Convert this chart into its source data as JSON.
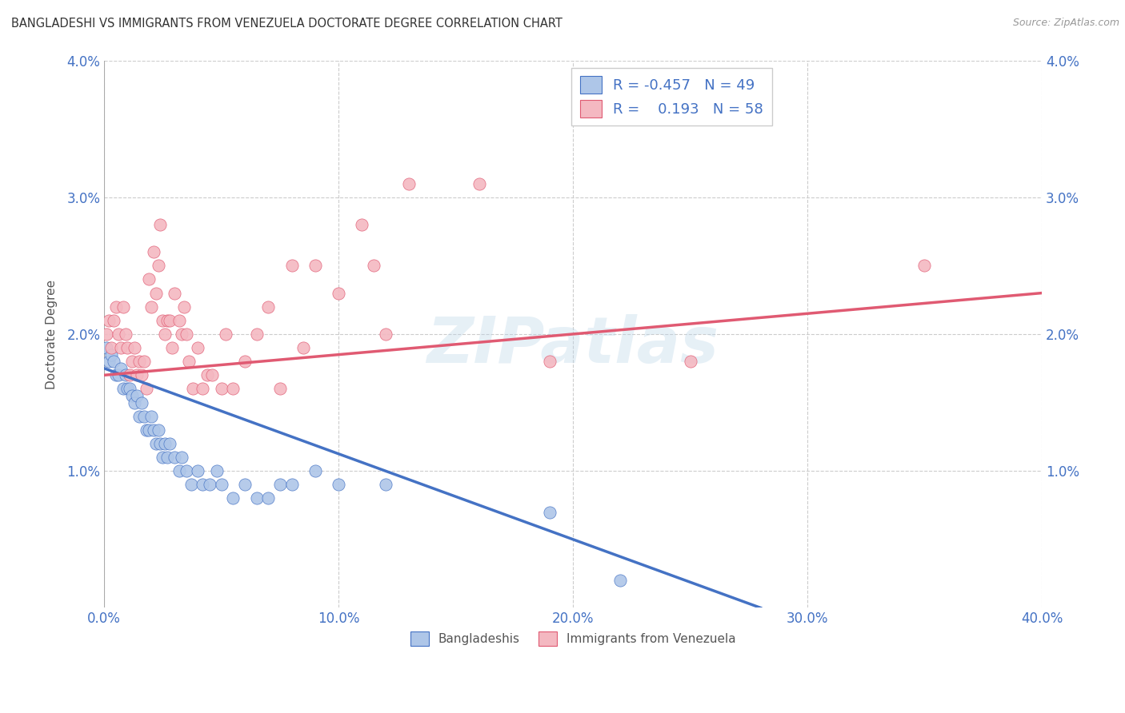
{
  "title": "BANGLADESHI VS IMMIGRANTS FROM VENEZUELA DOCTORATE DEGREE CORRELATION CHART",
  "source": "Source: ZipAtlas.com",
  "ylabel": "Doctorate Degree",
  "xlim": [
    0.0,
    0.4
  ],
  "ylim": [
    0.0,
    0.04
  ],
  "xtick_vals": [
    0.0,
    0.1,
    0.2,
    0.3,
    0.4
  ],
  "ytick_labels": [
    "1.0%",
    "2.0%",
    "3.0%",
    "4.0%"
  ],
  "ytick_vals": [
    0.01,
    0.02,
    0.03,
    0.04
  ],
  "watermark": "ZIPatlas",
  "legend_entries": [
    {
      "color": "#aec6e8",
      "r": "-0.457",
      "n": "49"
    },
    {
      "color": "#f4b8c1",
      "r": " 0.193",
      "n": "58"
    }
  ],
  "bangladeshi_color": "#aec6e8",
  "venezuela_color": "#f4b8c1",
  "blue_line_color": "#4472c4",
  "pink_line_color": "#e05a72",
  "background_color": "#ffffff",
  "grid_color": "#cccccc",
  "legend_label_blue": "Bangladeshis",
  "legend_label_pink": "Immigrants from Venezuela",
  "blue_line": {
    "x0": 0.0,
    "y0": 0.0175,
    "x1": 0.28,
    "y1": 0.0
  },
  "pink_line": {
    "x0": 0.0,
    "y0": 0.017,
    "x1": 0.4,
    "y1": 0.023
  },
  "bangladeshi_points": [
    [
      0.001,
      0.019
    ],
    [
      0.002,
      0.018
    ],
    [
      0.003,
      0.0185
    ],
    [
      0.004,
      0.018
    ],
    [
      0.005,
      0.017
    ],
    [
      0.006,
      0.017
    ],
    [
      0.007,
      0.0175
    ],
    [
      0.008,
      0.016
    ],
    [
      0.009,
      0.017
    ],
    [
      0.01,
      0.016
    ],
    [
      0.011,
      0.016
    ],
    [
      0.012,
      0.0155
    ],
    [
      0.013,
      0.015
    ],
    [
      0.014,
      0.0155
    ],
    [
      0.015,
      0.014
    ],
    [
      0.016,
      0.015
    ],
    [
      0.017,
      0.014
    ],
    [
      0.018,
      0.013
    ],
    [
      0.019,
      0.013
    ],
    [
      0.02,
      0.014
    ],
    [
      0.021,
      0.013
    ],
    [
      0.022,
      0.012
    ],
    [
      0.023,
      0.013
    ],
    [
      0.024,
      0.012
    ],
    [
      0.025,
      0.011
    ],
    [
      0.026,
      0.012
    ],
    [
      0.027,
      0.011
    ],
    [
      0.028,
      0.012
    ],
    [
      0.03,
      0.011
    ],
    [
      0.032,
      0.01
    ],
    [
      0.033,
      0.011
    ],
    [
      0.035,
      0.01
    ],
    [
      0.037,
      0.009
    ],
    [
      0.04,
      0.01
    ],
    [
      0.042,
      0.009
    ],
    [
      0.045,
      0.009
    ],
    [
      0.048,
      0.01
    ],
    [
      0.05,
      0.009
    ],
    [
      0.055,
      0.008
    ],
    [
      0.06,
      0.009
    ],
    [
      0.065,
      0.008
    ],
    [
      0.07,
      0.008
    ],
    [
      0.075,
      0.009
    ],
    [
      0.08,
      0.009
    ],
    [
      0.09,
      0.01
    ],
    [
      0.1,
      0.009
    ],
    [
      0.12,
      0.009
    ],
    [
      0.19,
      0.007
    ],
    [
      0.22,
      0.002
    ]
  ],
  "venezuela_points": [
    [
      0.001,
      0.02
    ],
    [
      0.002,
      0.021
    ],
    [
      0.003,
      0.019
    ],
    [
      0.004,
      0.021
    ],
    [
      0.005,
      0.022
    ],
    [
      0.006,
      0.02
    ],
    [
      0.007,
      0.019
    ],
    [
      0.008,
      0.022
    ],
    [
      0.009,
      0.02
    ],
    [
      0.01,
      0.019
    ],
    [
      0.011,
      0.017
    ],
    [
      0.012,
      0.018
    ],
    [
      0.013,
      0.019
    ],
    [
      0.014,
      0.017
    ],
    [
      0.015,
      0.018
    ],
    [
      0.016,
      0.017
    ],
    [
      0.017,
      0.018
    ],
    [
      0.018,
      0.016
    ],
    [
      0.019,
      0.024
    ],
    [
      0.02,
      0.022
    ],
    [
      0.021,
      0.026
    ],
    [
      0.022,
      0.023
    ],
    [
      0.023,
      0.025
    ],
    [
      0.024,
      0.028
    ],
    [
      0.025,
      0.021
    ],
    [
      0.026,
      0.02
    ],
    [
      0.027,
      0.021
    ],
    [
      0.028,
      0.021
    ],
    [
      0.029,
      0.019
    ],
    [
      0.03,
      0.023
    ],
    [
      0.032,
      0.021
    ],
    [
      0.033,
      0.02
    ],
    [
      0.034,
      0.022
    ],
    [
      0.035,
      0.02
    ],
    [
      0.036,
      0.018
    ],
    [
      0.038,
      0.016
    ],
    [
      0.04,
      0.019
    ],
    [
      0.042,
      0.016
    ],
    [
      0.044,
      0.017
    ],
    [
      0.046,
      0.017
    ],
    [
      0.05,
      0.016
    ],
    [
      0.052,
      0.02
    ],
    [
      0.055,
      0.016
    ],
    [
      0.06,
      0.018
    ],
    [
      0.065,
      0.02
    ],
    [
      0.07,
      0.022
    ],
    [
      0.075,
      0.016
    ],
    [
      0.08,
      0.025
    ],
    [
      0.085,
      0.019
    ],
    [
      0.09,
      0.025
    ],
    [
      0.1,
      0.023
    ],
    [
      0.11,
      0.028
    ],
    [
      0.115,
      0.025
    ],
    [
      0.12,
      0.02
    ],
    [
      0.13,
      0.031
    ],
    [
      0.16,
      0.031
    ],
    [
      0.19,
      0.018
    ],
    [
      0.25,
      0.018
    ],
    [
      0.35,
      0.025
    ]
  ]
}
